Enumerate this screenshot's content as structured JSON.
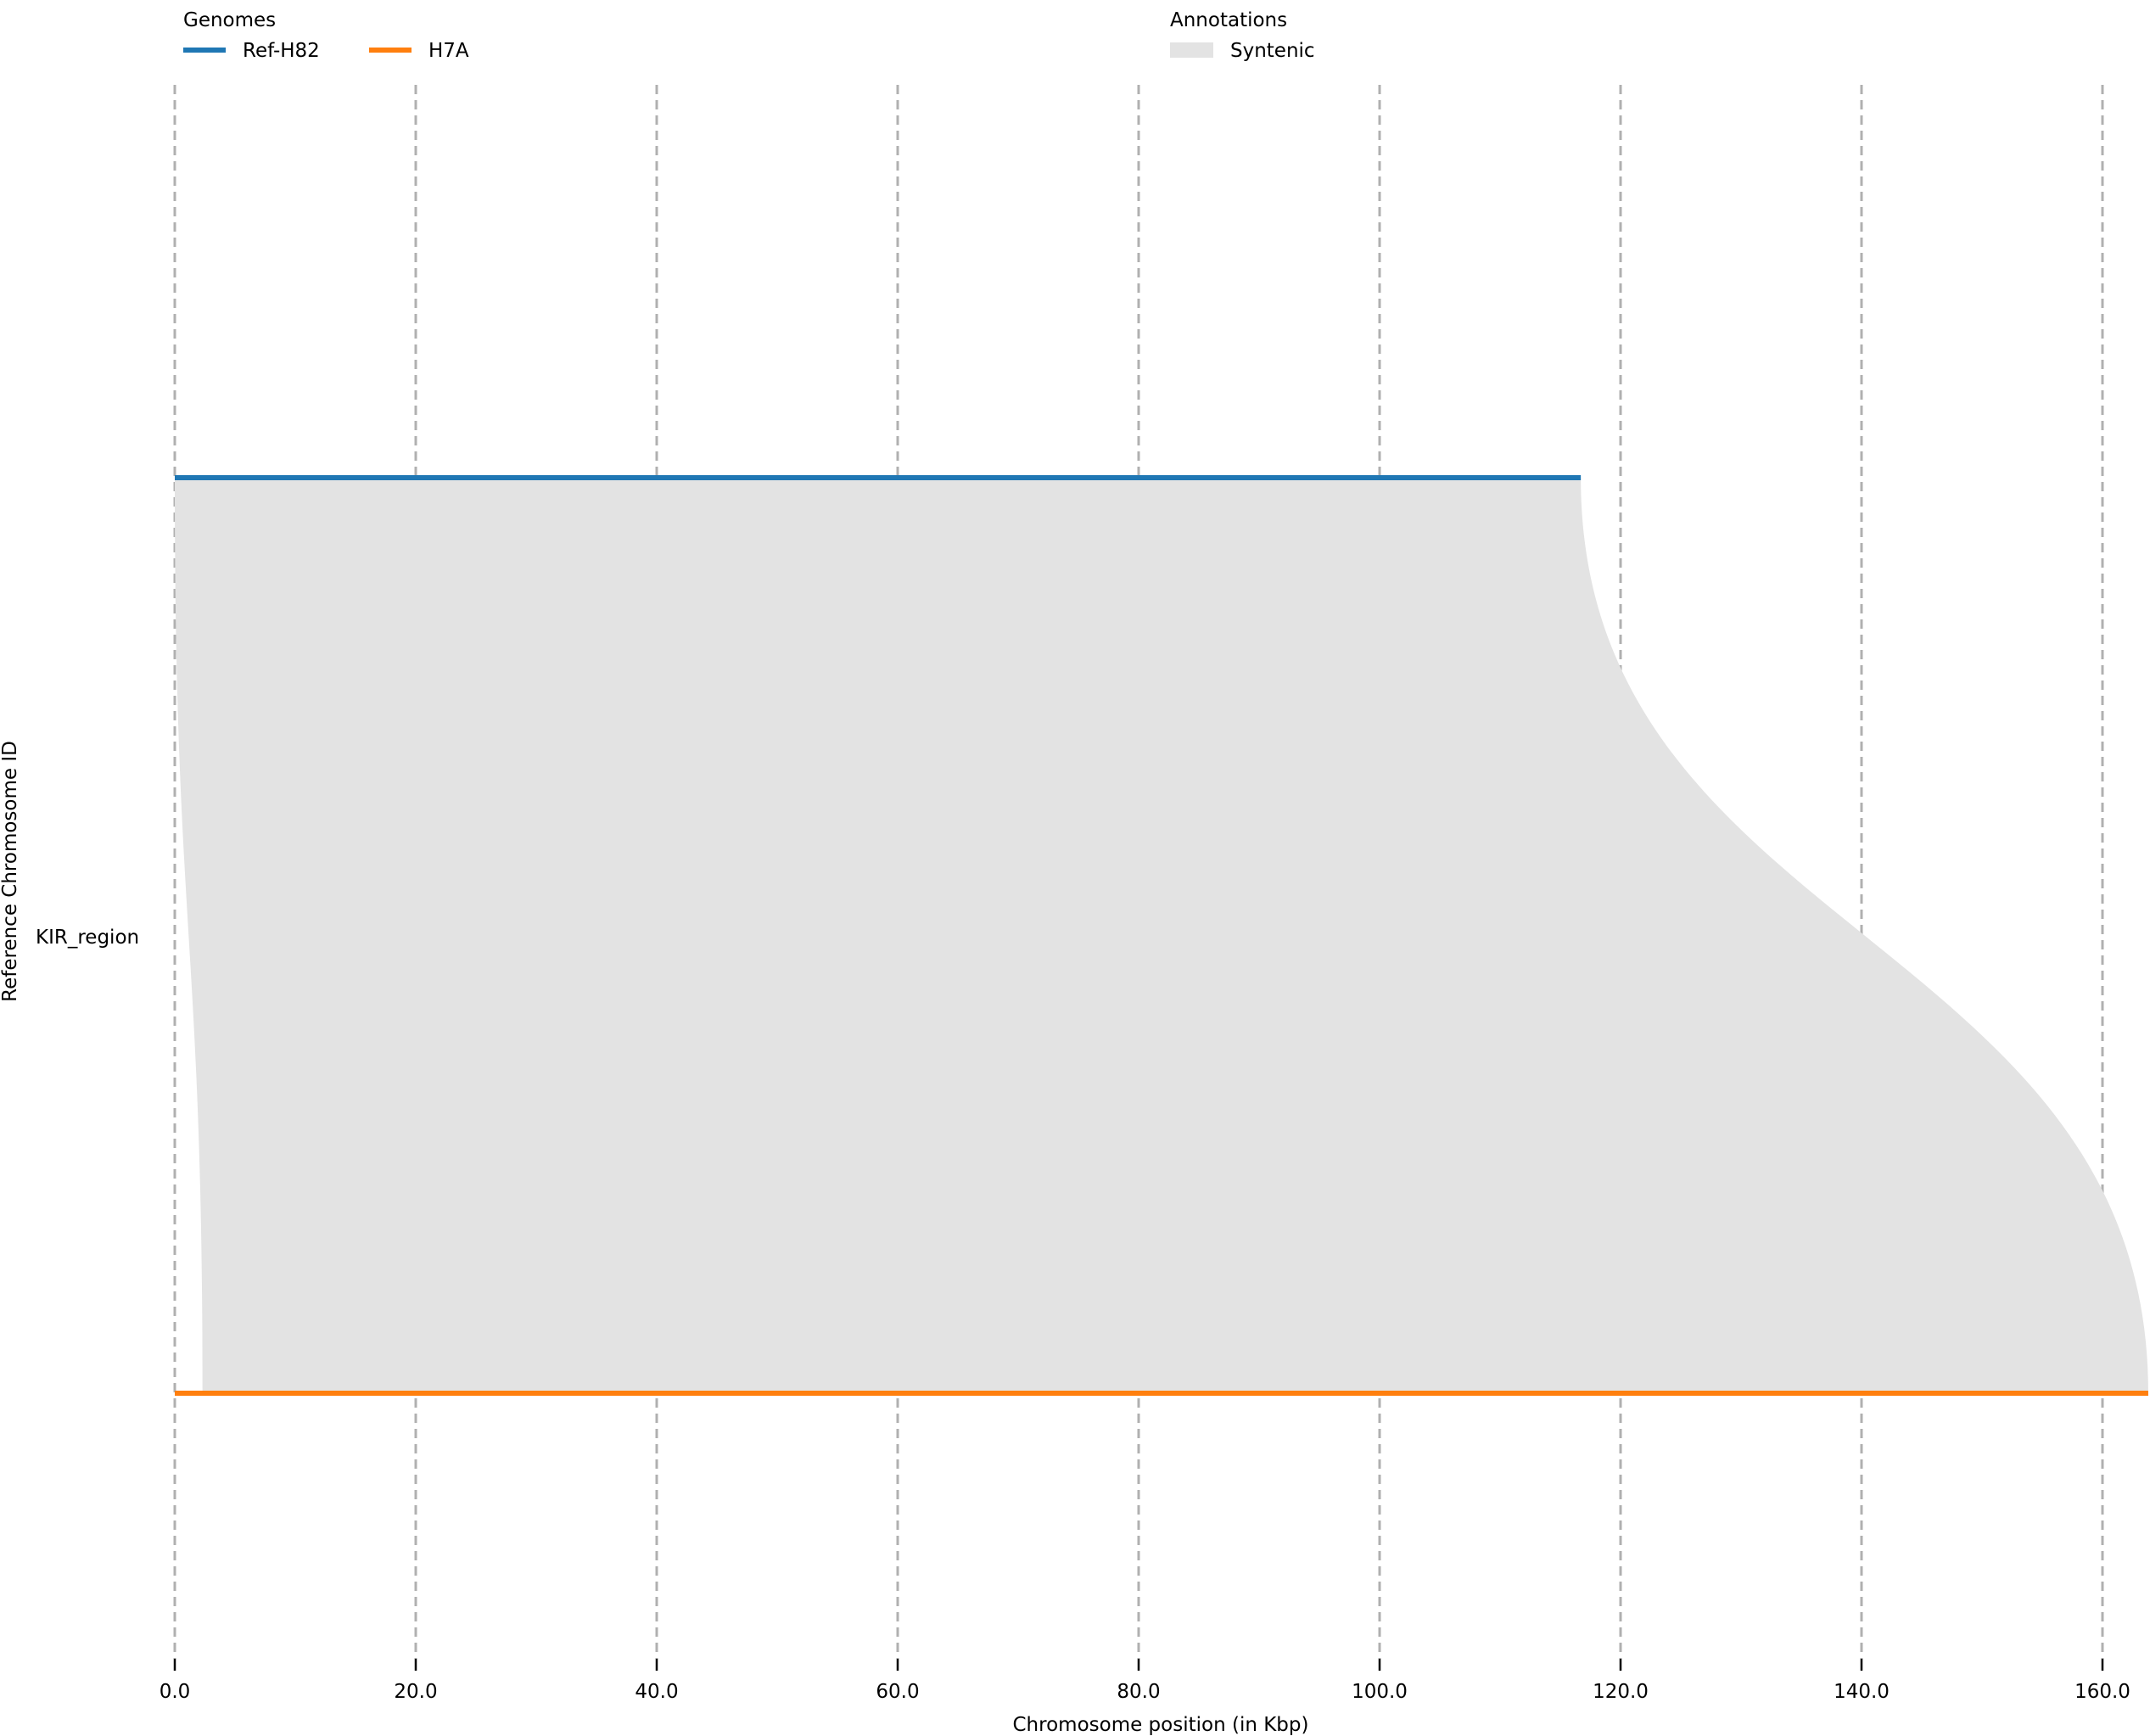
{
  "chart_data": {
    "type": "area",
    "ylabel": "Reference Chromosome ID",
    "xlabel": "Chromosome position (in Kbp)",
    "xlim": [
      0,
      164
    ],
    "x_ticks": [
      0,
      20,
      40,
      60,
      80,
      100,
      120,
      140,
      160
    ],
    "x_tick_labels": [
      "0.0",
      "20.0",
      "40.0",
      "60.0",
      "80.0",
      "100.0",
      "120.0",
      "140.0",
      "160.0"
    ],
    "grid": {
      "x": "dashed",
      "y": "none"
    },
    "chromosome": "KIR_region",
    "genomes_legend_title": "Genomes",
    "annotations_legend_title": "Annotations",
    "genomes": [
      {
        "name": "Ref-H82",
        "color": "#1f77b4",
        "start": 0,
        "end": 116.7,
        "row": "top"
      },
      {
        "name": "H7A",
        "color": "#ff7f0e",
        "start": 0,
        "end": 163.8,
        "row": "bottom"
      }
    ],
    "annotations": [
      {
        "name": "Syntenic",
        "color": "#e3e3e3",
        "from_genome": "Ref-H82",
        "to_genome": "H7A",
        "from_range": [
          0,
          116.7
        ],
        "to_range": [
          2.3,
          163.8
        ]
      }
    ]
  }
}
